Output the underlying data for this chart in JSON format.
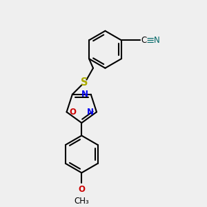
{
  "bg_color": "#efefef",
  "bond_color": "#000000",
  "N_color": "#0000ee",
  "O_color": "#cc0000",
  "S_color": "#aaaa00",
  "CN_N_color": "#006666",
  "lw": 1.5,
  "fs": 8.5,
  "fig_w": 3.0,
  "fig_h": 3.0,
  "dpi": 100,
  "xlim": [
    -2.5,
    4.5
  ],
  "ylim": [
    -5.5,
    3.5
  ]
}
